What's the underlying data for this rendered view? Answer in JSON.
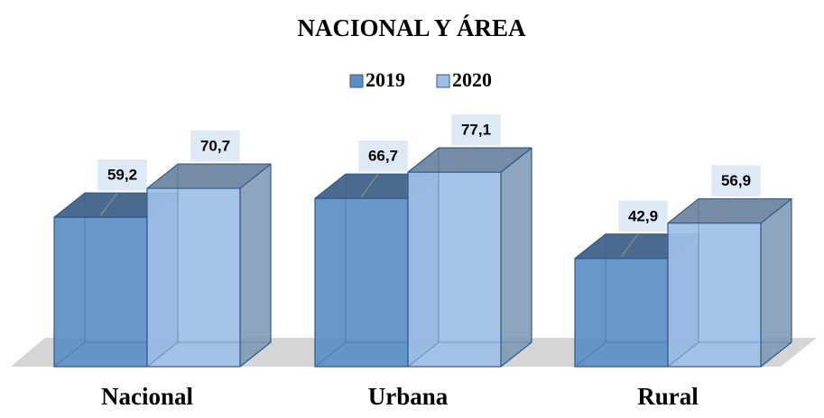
{
  "chart_data": {
    "type": "bar3d",
    "title": "NACIONAL Y ÁREA",
    "categories": [
      "Nacional",
      "Urbana",
      "Rural"
    ],
    "series": [
      {
        "name": "2019",
        "color": "#5b8ec4",
        "values": [
          59.2,
          66.7,
          42.9
        ],
        "value_labels": [
          "59,2",
          "66,7",
          "42,9"
        ]
      },
      {
        "name": "2020",
        "color": "#9dbfe6",
        "values": [
          70.7,
          77.1,
          56.9
        ],
        "value_labels": [
          "70,7",
          "77,1",
          "56,9"
        ]
      }
    ],
    "legend": "top"
  }
}
